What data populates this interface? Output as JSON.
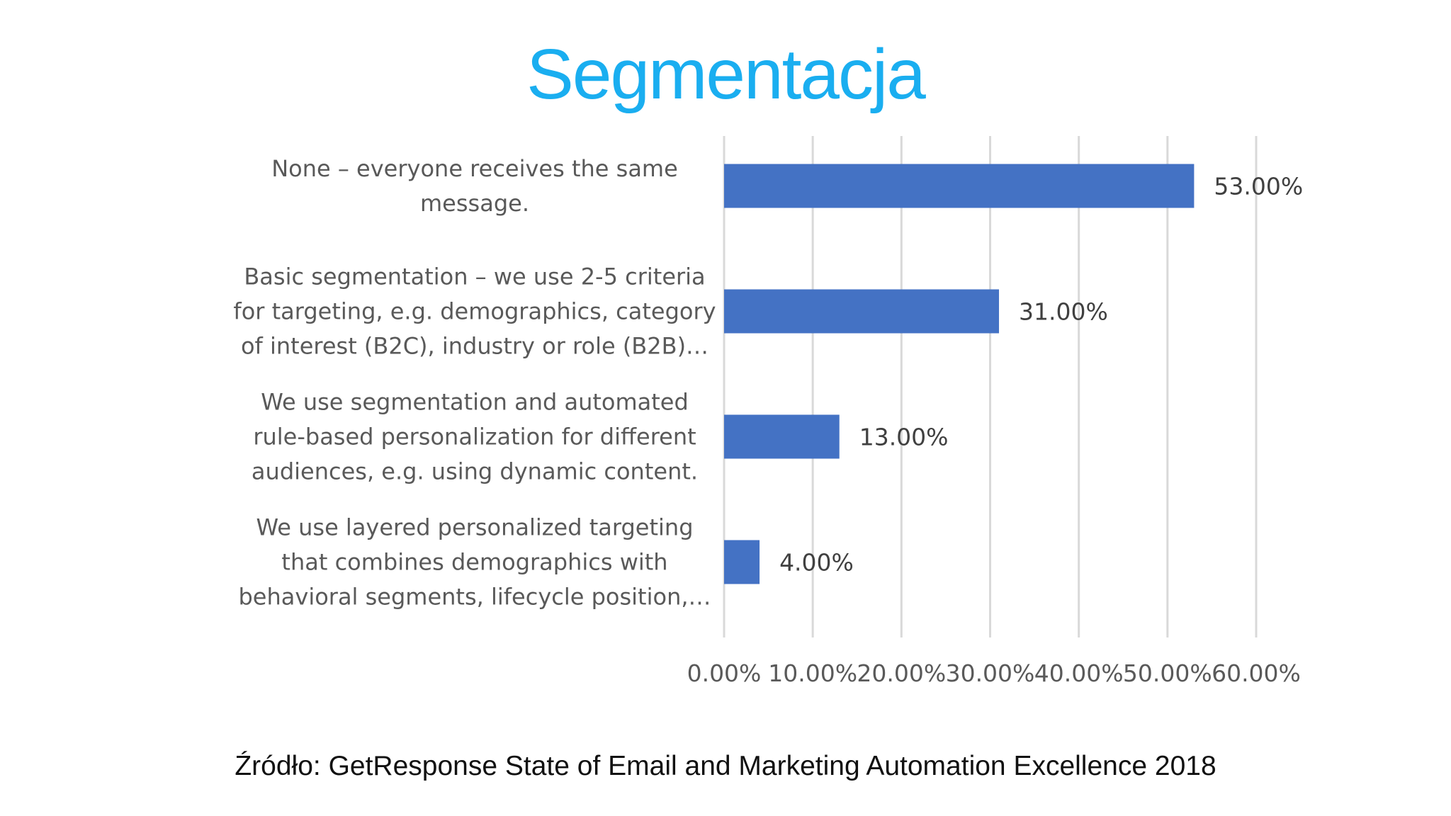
{
  "slide": {
    "title": "Segmentacja",
    "source": "Źródło: GetResponse State of Email and Marketing Automation Excellence 2018"
  },
  "colors": {
    "title": "#1aaef0",
    "bar": "#4472c4",
    "grid": "#d9d9d9",
    "text": "#595959"
  },
  "chart_data": {
    "type": "bar",
    "orientation": "horizontal",
    "title": "",
    "xlabel": "",
    "ylabel": "",
    "xlim": [
      0,
      60
    ],
    "grid": true,
    "legend": "none",
    "categories": [
      [
        "None – everyone receives the same",
        "message."
      ],
      [
        "Basic segmentation – we use 2-5 criteria",
        "for targeting, e.g. demographics, category",
        "of interest (B2C), industry or role (B2B)…"
      ],
      [
        "We use segmentation and automated",
        "rule-based personalization for different",
        "audiences, e.g. using dynamic content."
      ],
      [
        "We use layered personalized targeting",
        "that combines demographics with",
        "behavioral segments, lifecycle position,…"
      ]
    ],
    "values": [
      53,
      31,
      13,
      4
    ],
    "data_labels": [
      "53.00%",
      "31.00%",
      "13.00%",
      "4.00%"
    ],
    "ticks": [
      0,
      10,
      20,
      30,
      40,
      50,
      60
    ],
    "tick_labels": [
      "0.00%",
      "10.00%",
      "20.00%",
      "30.00%",
      "40.00%",
      "50.00%",
      "60.00%"
    ]
  }
}
